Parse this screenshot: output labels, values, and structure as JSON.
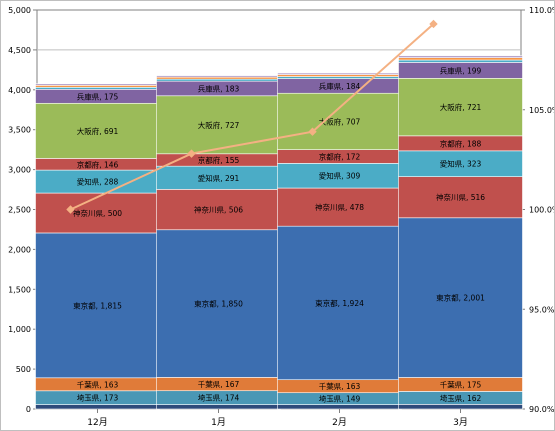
{
  "chart_data": {
    "type": "bar",
    "stacked": true,
    "categories": [
      "12月",
      "1月",
      "2月",
      "3月"
    ],
    "y_left": {
      "min": 0,
      "max": 5000,
      "step": 500,
      "ticks": [
        "0",
        "500",
        "1,000",
        "1,500",
        "2,000",
        "2,500",
        "3,000",
        "3,500",
        "4,000",
        "4,500",
        "5,000"
      ]
    },
    "y_right": {
      "min": 90.0,
      "max": 110.0,
      "step": 5.0,
      "ticks": [
        "90.0%",
        "95.0%",
        "100.0%",
        "105.0%",
        "110.0%"
      ]
    },
    "grid": true,
    "series": [
      {
        "name": "",
        "color": "#2e4a7a",
        "values": [
          55,
          55,
          55,
          58
        ],
        "show_label": false
      },
      {
        "name": "埼玉県",
        "color": "#4a97b5",
        "values": [
          173,
          174,
          149,
          162
        ],
        "show_label": true
      },
      {
        "name": "千葉県",
        "color": "#e07b39",
        "values": [
          163,
          167,
          163,
          175
        ],
        "show_label": true
      },
      {
        "name": "東京都",
        "color": "#3c6eb0",
        "values": [
          1815,
          1850,
          1924,
          2001
        ],
        "show_label": true
      },
      {
        "name": "神奈川県",
        "color": "#c0504d",
        "values": [
          500,
          506,
          478,
          516
        ],
        "show_label": true
      },
      {
        "name": "愛知県",
        "color": "#4bacc6",
        "values": [
          288,
          291,
          309,
          323
        ],
        "show_label": true
      },
      {
        "name": "京都府",
        "color": "#c0504d",
        "values": [
          146,
          155,
          172,
          188
        ],
        "show_label": true
      },
      {
        "name": "大阪府",
        "color": "#9bbb59",
        "values": [
          691,
          727,
          707,
          721
        ],
        "show_label": true
      },
      {
        "name": "兵庫県",
        "color": "#8064a2",
        "values": [
          175,
          183,
          184,
          199
        ],
        "show_label": true
      },
      {
        "name": "",
        "color": "#4aacc6",
        "values": [
          25,
          25,
          25,
          30
        ],
        "show_label": false
      },
      {
        "name": "",
        "color": "#f79646",
        "values": [
          25,
          25,
          25,
          30
        ],
        "show_label": false
      },
      {
        "name": "",
        "color": "#b7a4cc",
        "values": [
          20,
          20,
          20,
          25
        ],
        "show_label": false
      }
    ],
    "line_series": {
      "name": "",
      "color": "#f4b183",
      "axis": "right",
      "values": [
        100.0,
        102.8,
        103.9,
        109.3
      ]
    },
    "labels": {
      "0": {
        "埼玉県": "埼玉県, 173",
        "千葉県": "千葉県, 163",
        "東京都": "東京都, 1,815",
        "神奈川県": "神奈川県, 500",
        "愛知県": "愛知県, 288",
        "京都府": "京都府, 146",
        "大阪府": "大阪府, 691",
        "兵庫県": "兵庫県, 175"
      },
      "1": {
        "埼玉県": "埼玉県, 174",
        "千葉県": "千葉県, 167",
        "東京都": "東京都, 1,850",
        "神奈川県": "神奈川県, 506",
        "愛知県": "愛知県, 291",
        "京都府": "京都府, 155",
        "大阪府": "大阪府, 727",
        "兵庫県": "兵庫県, 183"
      },
      "2": {
        "埼玉県": "埼玉県, 149",
        "千葉県": "千葉県, 163",
        "東京都": "東京都, 1,924",
        "神奈川県": "神奈川県, 478",
        "愛知県": "愛知県, 309",
        "京都府": "京都府, 172",
        "大阪府": "大阪府, 707",
        "兵庫県": "兵庫県, 184"
      },
      "3": {
        "埼玉県": "埼玉県, 162",
        "千葉県": "千葉県, 175",
        "東京都": "東京都, 2,001",
        "神奈川県": "神奈川県, 516",
        "愛知県": "愛知県, 323",
        "京都府": "京都府, 188",
        "大阪府": "大阪府, 721",
        "兵庫県": "兵庫県, 199"
      }
    }
  }
}
